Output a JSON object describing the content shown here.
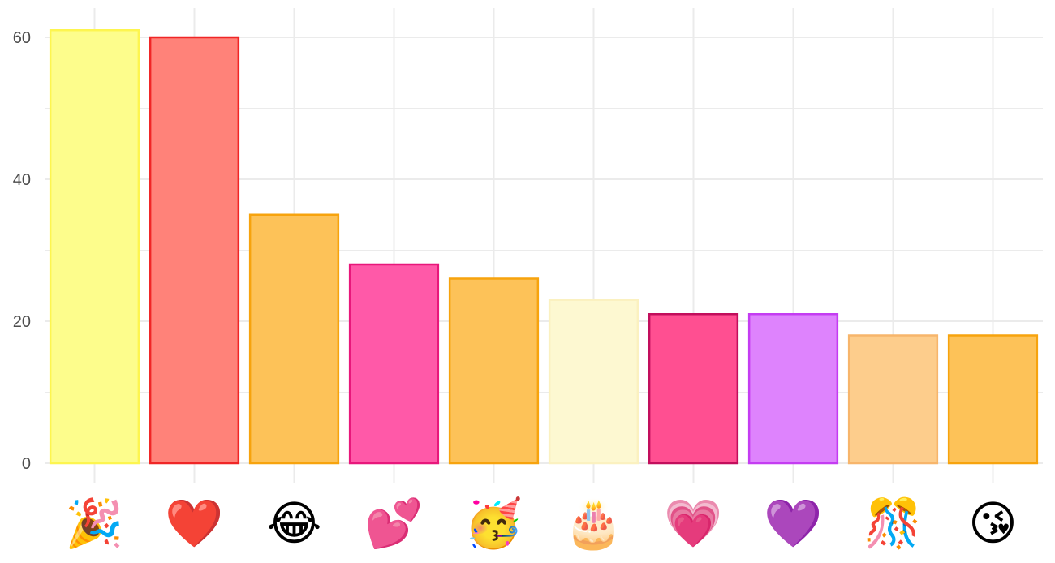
{
  "chart_data": {
    "type": "bar",
    "categories": [
      "🎉",
      "❤️",
      "😂",
      "💕",
      "🥳",
      "🎂",
      "💗",
      "💜",
      "🎊",
      "😘"
    ],
    "values": [
      61,
      60,
      35,
      28,
      26,
      23,
      21,
      21,
      18,
      18
    ],
    "ylim": [
      0,
      64
    ],
    "yticks": [
      0,
      20,
      40,
      60
    ],
    "ytick_labels": [
      "0",
      "20",
      "40",
      "60"
    ],
    "grid": true,
    "legend": "none",
    "colors": {
      "fills": [
        "#fdfd8c",
        "#ff8279",
        "#fdc258",
        "#ff59a8",
        "#fdc258",
        "#fdf8d1",
        "#ff4f91",
        "#de83fd",
        "#fdcd8c",
        "#fdc258"
      ],
      "strokes": [
        "#fdf54f",
        "#f02626",
        "#f7a30d",
        "#e8177b",
        "#f7a30d",
        "#fbf1c0",
        "#c20e5c",
        "#c43cf2",
        "#f7b56b",
        "#f7a30d"
      ],
      "grid": "#ebebeb",
      "text": "#4d4d4d"
    }
  }
}
